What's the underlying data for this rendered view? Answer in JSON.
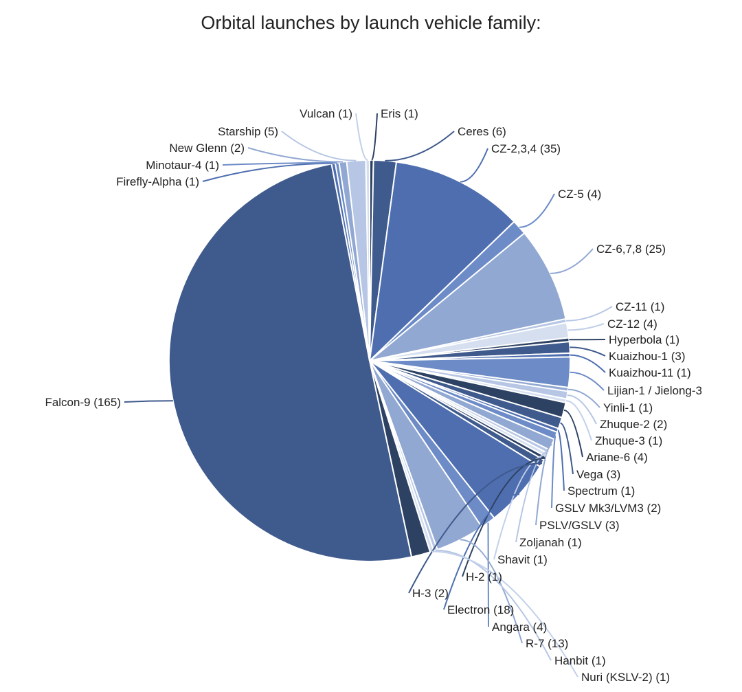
{
  "chart_data": {
    "type": "pie",
    "title": "Orbital launches by launch vehicle family:",
    "start_angle_deg": 0,
    "colors": [
      "#3f5a8c",
      "#4e6eb0",
      "#6c8bc7",
      "#91a8d2",
      "#b6c6e4",
      "#d5dff0",
      "#2d4162"
    ],
    "slices": [
      {
        "label": "Eris (1)",
        "value": 1,
        "color": "#2d4162"
      },
      {
        "label": "Ceres (6)",
        "value": 6,
        "color": "#3f5a8c"
      },
      {
        "label": "CZ-2,3,4 (35)",
        "value": 35,
        "color": "#4e6eb0"
      },
      {
        "label": "CZ-5 (4)",
        "value": 4,
        "color": "#6c8bc7"
      },
      {
        "label": "CZ-6,7,8 (25)",
        "value": 25,
        "color": "#91a8d2"
      },
      {
        "label": "CZ-11 (1)",
        "value": 1,
        "color": "#b6c6e4"
      },
      {
        "label": "CZ-12 (4)",
        "value": 4,
        "color": "#d5dff0"
      },
      {
        "label": "Hyperbola (1)",
        "value": 1,
        "color": "#2d4162"
      },
      {
        "label": "Kuaizhou-1 (3)",
        "value": 3,
        "color": "#3f5a8c"
      },
      {
        "label": "Kuaizhou-11 (1)",
        "value": 1,
        "color": "#4e6eb0"
      },
      {
        "label": "Lijian-1 / Jielong-3",
        "value": 8,
        "color": "#6c8bc7"
      },
      {
        "label": "Yinli-1 (1)",
        "value": 1,
        "color": "#91a8d2"
      },
      {
        "label": "Zhuque-2 (2)",
        "value": 2,
        "color": "#b6c6e4"
      },
      {
        "label": "Zhuque-3 (1)",
        "value": 1,
        "color": "#d5dff0"
      },
      {
        "label": "Ariane-6 (4)",
        "value": 4,
        "color": "#2d4162"
      },
      {
        "label": "Vega (3)",
        "value": 3,
        "color": "#3f5a8c"
      },
      {
        "label": "Spectrum (1)",
        "value": 1,
        "color": "#4e6eb0"
      },
      {
        "label": "GSLV Mk3/LVM3 (2)",
        "value": 2,
        "color": "#6c8bc7"
      },
      {
        "label": "PSLV/GSLV (3)",
        "value": 3,
        "color": "#91a8d2"
      },
      {
        "label": "Zoljanah (1)",
        "value": 1,
        "color": "#b6c6e4"
      },
      {
        "label": "Shavit (1)",
        "value": 1,
        "color": "#d5dff0"
      },
      {
        "label": "H-2 (1)",
        "value": 1,
        "color": "#2d4162"
      },
      {
        "label": "H-3 (2)",
        "value": 2,
        "color": "#3f5a8c"
      },
      {
        "label": "Electron (18)",
        "value": 18,
        "color": "#4e6eb0"
      },
      {
        "label": "Angara (4)",
        "value": 4,
        "color": "#6c8bc7"
      },
      {
        "label": "R-7 (13)",
        "value": 13,
        "color": "#91a8d2"
      },
      {
        "label": "Hanbit (1)",
        "value": 1,
        "color": "#b6c6e4"
      },
      {
        "label": "Nuri (KSLV-2) (1)",
        "value": 1,
        "color": "#d5dff0"
      },
      {
        "label": "",
        "value": 5,
        "color": "#2d4162"
      },
      {
        "label": "Falcon-9 (165)",
        "value": 165,
        "color": "#3f5a8c"
      },
      {
        "label": "Firefly-Alpha (1)",
        "value": 1,
        "color": "#4e6eb0"
      },
      {
        "label": "Minotaur-4 (1)",
        "value": 1,
        "color": "#6c8bc7"
      },
      {
        "label": "New Glenn (2)",
        "value": 2,
        "color": "#91a8d2"
      },
      {
        "label": "Starship (5)",
        "value": 5,
        "color": "#b6c6e4"
      },
      {
        "label": "Vulcan (1)",
        "value": 1,
        "color": "#d5dff0"
      }
    ]
  }
}
